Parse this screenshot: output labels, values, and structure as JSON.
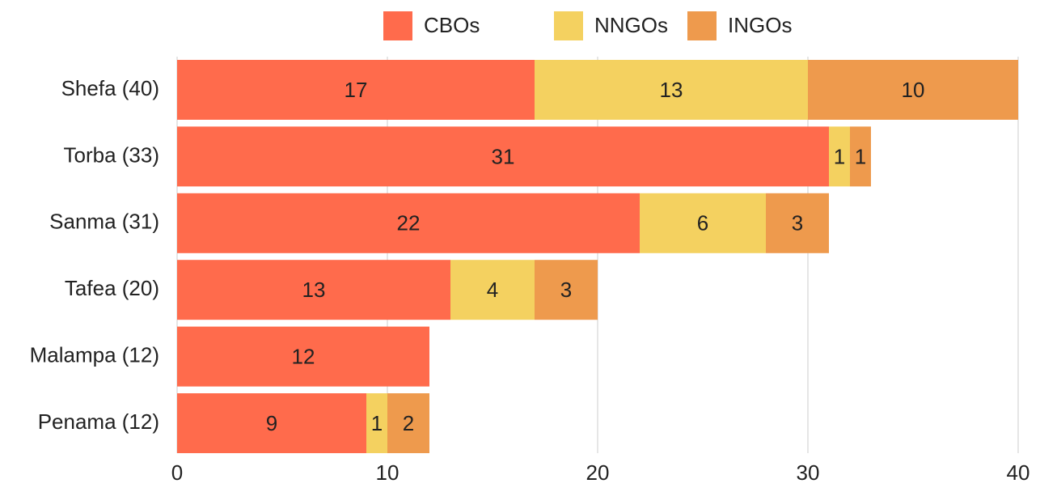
{
  "chart_data": {
    "type": "stacked_hbar",
    "categories": [
      "Shefa (40)",
      "Torba (33)",
      "Sanma (31)",
      "Tafea (20)",
      "Malampa (12)",
      "Penama (12)"
    ],
    "series": [
      {
        "name": "CBOs",
        "color": "#ff6b4c",
        "values": [
          17,
          31,
          22,
          13,
          12,
          9
        ]
      },
      {
        "name": "NNGOs",
        "color": "#f4d160",
        "values": [
          13,
          1,
          6,
          4,
          0,
          1
        ]
      },
      {
        "name": "INGOs",
        "color": "#ee9a4d",
        "values": [
          10,
          1,
          3,
          3,
          0,
          2
        ]
      }
    ],
    "xlim": [
      0,
      40
    ],
    "xticks": [
      0,
      10,
      20,
      30,
      40
    ],
    "grid": true,
    "legend": "top"
  }
}
